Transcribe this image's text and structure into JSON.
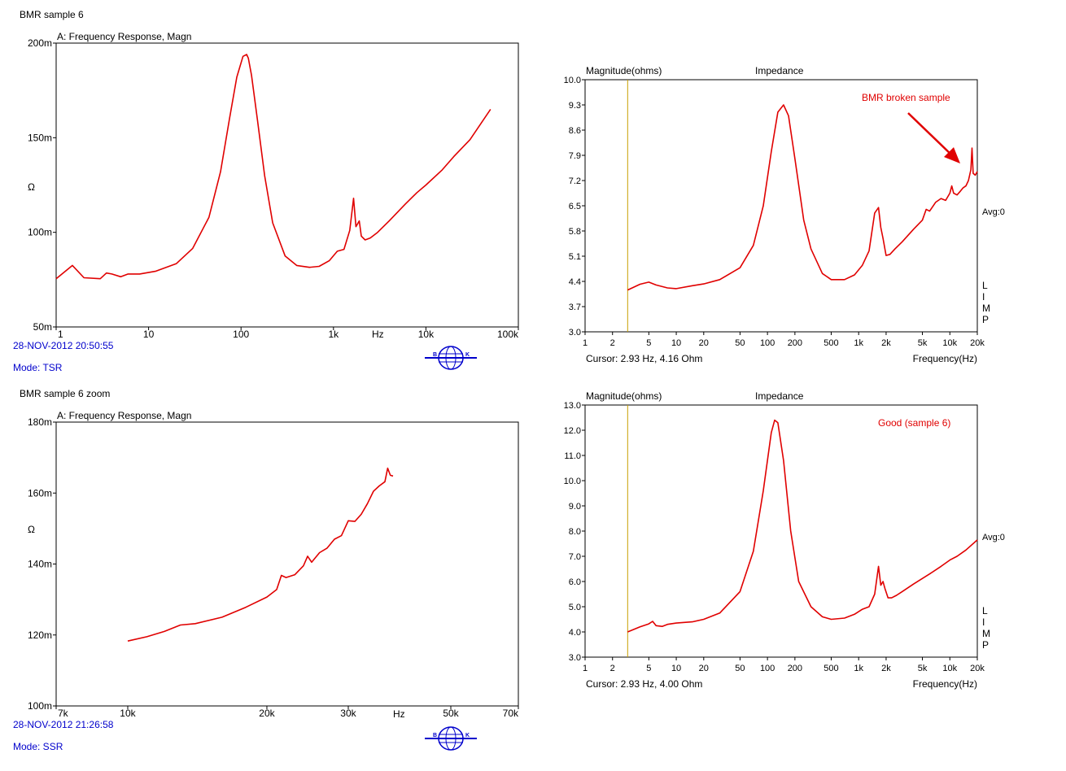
{
  "colors": {
    "trace": "#e00000",
    "blue_text": "#0000cc",
    "cursor_line": "#c8a000",
    "frame": "#000000",
    "annotation": "#e00000"
  },
  "icons": [
    "bk-logo-icon"
  ],
  "left_top": {
    "section_title": "BMR sample 6",
    "plot_title": "A: Frequency Response, Magn",
    "unit_label": "Ω",
    "hz_label": "Hz",
    "timestamp": "28-NOV-2012 20:50:55",
    "mode": "Mode: TSR"
  },
  "left_bottom": {
    "section_title": "BMR sample 6 zoom",
    "plot_title": "A: Frequency Response, Magn",
    "unit_label": "Ω",
    "hz_label": "Hz",
    "timestamp": "28-NOV-2012 21:26:58",
    "mode": "Mode: SSR"
  },
  "right_top": {
    "ylabel": "Magnitude(ohms)",
    "title": "Impedance",
    "annotation": "BMR broken sample",
    "avg": "Avg:0",
    "limp": [
      "L",
      "I",
      "M",
      "P"
    ],
    "cursor": "Cursor: 2.93 Hz, 4.16 Ohm",
    "xlabel": "Frequency(Hz)"
  },
  "right_bottom": {
    "ylabel": "Magnitude(ohms)",
    "title": "Impedance",
    "annotation": "Good (sample 6)",
    "avg": "Avg:0",
    "limp": [
      "L",
      "I",
      "M",
      "P"
    ],
    "cursor": "Cursor: 2.93 Hz, 4.00 Ohm",
    "xlabel": "Frequency(Hz)"
  },
  "chart_data": [
    {
      "type": "line",
      "xscale": "log",
      "xlim": [
        1,
        100000
      ],
      "ylim": [
        0.05,
        0.2
      ],
      "xticks": [
        1,
        10,
        100,
        1000,
        10000,
        100000
      ],
      "xtick_labels": [
        "1",
        "10",
        "100",
        "1k",
        "10k",
        "100k"
      ],
      "yticks": [
        0.05,
        0.1,
        0.15,
        0.2
      ],
      "ytick_labels": [
        "50m",
        "100m",
        "150m",
        "200m"
      ],
      "series": [
        {
          "x": [
            1,
            1.5,
            2,
            3,
            3.5,
            4,
            5,
            6,
            8,
            12,
            20,
            30,
            45,
            60,
            75,
            90,
            105,
            115,
            120,
            130,
            150,
            180,
            220,
            300,
            400,
            550,
            700,
            900,
            1100,
            1300,
            1500,
            1650,
            1750,
            1900,
            2000,
            2200,
            2500,
            3000,
            4000,
            6000,
            8000,
            10000,
            15000,
            20000,
            30000,
            40000,
            50000
          ],
          "y": [
            0.0755,
            0.0825,
            0.076,
            0.0755,
            0.0785,
            0.078,
            0.0765,
            0.078,
            0.078,
            0.0795,
            0.0835,
            0.0915,
            0.108,
            0.132,
            0.16,
            0.182,
            0.193,
            0.194,
            0.192,
            0.183,
            0.16,
            0.13,
            0.105,
            0.0875,
            0.0825,
            0.0815,
            0.082,
            0.085,
            0.09,
            0.091,
            0.101,
            0.118,
            0.103,
            0.106,
            0.098,
            0.096,
            0.097,
            0.1,
            0.106,
            0.115,
            0.121,
            0.125,
            0.133,
            0.14,
            0.149,
            0.158,
            0.165
          ]
        }
      ]
    },
    {
      "type": "line",
      "xscale": "log",
      "xlim": [
        7000,
        70000
      ],
      "ylim": [
        0.1,
        0.18
      ],
      "xticks": [
        7000,
        10000,
        20000,
        30000,
        50000,
        70000
      ],
      "xtick_labels": [
        "7k",
        "10k",
        "20k",
        "30k",
        "50k",
        "70k"
      ],
      "yticks": [
        0.1,
        0.12,
        0.14,
        0.16,
        0.18
      ],
      "ytick_labels": [
        "100m",
        "120m",
        "140m",
        "160m",
        "180m"
      ],
      "series": [
        {
          "x": [
            10000,
            11000,
            12000,
            13000,
            14000,
            16000,
            18000,
            20000,
            21000,
            21500,
            22000,
            23000,
            24000,
            24500,
            25000,
            26000,
            27000,
            28000,
            29000,
            30000,
            31000,
            32000,
            33000,
            34000,
            35000,
            36000,
            36500,
            37000,
            37500
          ],
          "y": [
            0.1183,
            0.1195,
            0.121,
            0.1228,
            0.1232,
            0.125,
            0.1278,
            0.1307,
            0.1328,
            0.1368,
            0.1362,
            0.137,
            0.1395,
            0.1422,
            0.1405,
            0.1432,
            0.1445,
            0.147,
            0.148,
            0.1522,
            0.152,
            0.154,
            0.157,
            0.1605,
            0.162,
            0.1632,
            0.167,
            0.165,
            0.1648
          ]
        }
      ]
    },
    {
      "type": "line",
      "title": "Impedance",
      "ylabel": "Magnitude(ohms)",
      "xlabel": "Frequency(Hz)",
      "xscale": "log",
      "xlim": [
        1,
        20000
      ],
      "ylim": [
        3.0,
        10.0
      ],
      "xticks": [
        1,
        2,
        5,
        10,
        20,
        50,
        100,
        200,
        500,
        1000,
        2000,
        5000,
        10000,
        20000
      ],
      "xtick_labels": [
        "1",
        "2",
        "5",
        "10",
        "20",
        "50",
        "100",
        "200",
        "500",
        "1k",
        "2k",
        "5k",
        "10k",
        "20k"
      ],
      "yticks": [
        3.0,
        3.7,
        4.4,
        5.1,
        5.8,
        6.5,
        7.2,
        7.9,
        8.6,
        9.3,
        10.0
      ],
      "ytick_labels": [
        "3.0",
        "3.7",
        "4.4",
        "5.1",
        "5.8",
        "6.5",
        "7.2",
        "7.9",
        "8.6",
        "9.3",
        "10.0"
      ],
      "cursor_x": 2.93,
      "series": [
        {
          "x": [
            2.93,
            4,
            5,
            6,
            8,
            10,
            15,
            20,
            30,
            50,
            70,
            90,
            110,
            130,
            150,
            170,
            200,
            250,
            300,
            400,
            500,
            700,
            900,
            1100,
            1300,
            1500,
            1650,
            1750,
            1850,
            2000,
            2200,
            2500,
            3000,
            4000,
            5000,
            5500,
            6000,
            7000,
            8000,
            9000,
            10000,
            10500,
            11000,
            12000,
            13000,
            14000,
            15000,
            16000,
            17000,
            17500,
            18000,
            19000,
            20000
          ],
          "y": [
            4.16,
            4.32,
            4.38,
            4.3,
            4.22,
            4.2,
            4.28,
            4.33,
            4.45,
            4.78,
            5.4,
            6.5,
            8.0,
            9.1,
            9.3,
            9.0,
            7.8,
            6.1,
            5.3,
            4.62,
            4.45,
            4.45,
            4.58,
            4.85,
            5.25,
            6.3,
            6.45,
            5.9,
            5.6,
            5.12,
            5.15,
            5.3,
            5.5,
            5.85,
            6.1,
            6.4,
            6.35,
            6.6,
            6.7,
            6.65,
            6.85,
            7.05,
            6.85,
            6.8,
            6.9,
            7.0,
            7.05,
            7.2,
            7.5,
            8.1,
            7.4,
            7.35,
            7.45
          ]
        }
      ]
    },
    {
      "type": "line",
      "title": "Impedance",
      "ylabel": "Magnitude(ohms)",
      "xlabel": "Frequency(Hz)",
      "xscale": "log",
      "xlim": [
        1,
        20000
      ],
      "ylim": [
        3.0,
        13.0
      ],
      "xticks": [
        1,
        2,
        5,
        10,
        20,
        50,
        100,
        200,
        500,
        1000,
        2000,
        5000,
        10000,
        20000
      ],
      "xtick_labels": [
        "1",
        "2",
        "5",
        "10",
        "20",
        "50",
        "100",
        "200",
        "500",
        "1k",
        "2k",
        "5k",
        "10k",
        "20k"
      ],
      "yticks": [
        3.0,
        4.0,
        5.0,
        6.0,
        7.0,
        8.0,
        9.0,
        10.0,
        11.0,
        12.0,
        13.0
      ],
      "ytick_labels": [
        "3.0",
        "4.0",
        "5.0",
        "6.0",
        "7.0",
        "8.0",
        "9.0",
        "10.0",
        "11.0",
        "12.0",
        "13.0"
      ],
      "cursor_x": 2.93,
      "series": [
        {
          "x": [
            2.93,
            4,
            5,
            5.5,
            6,
            7,
            8,
            10,
            15,
            20,
            30,
            50,
            70,
            90,
            110,
            120,
            130,
            150,
            180,
            220,
            300,
            400,
            500,
            700,
            900,
            1100,
            1300,
            1500,
            1650,
            1750,
            1850,
            1950,
            2100,
            2300,
            2600,
            3000,
            4000,
            6000,
            8000,
            10000,
            12000,
            15000,
            20000
          ],
          "y": [
            4.0,
            4.2,
            4.32,
            4.42,
            4.25,
            4.22,
            4.3,
            4.35,
            4.4,
            4.5,
            4.75,
            5.6,
            7.2,
            9.6,
            11.9,
            12.4,
            12.3,
            10.8,
            8.0,
            6.0,
            5.0,
            4.6,
            4.5,
            4.55,
            4.7,
            4.9,
            5.0,
            5.5,
            6.6,
            5.85,
            6.0,
            5.7,
            5.35,
            5.35,
            5.45,
            5.6,
            5.9,
            6.3,
            6.6,
            6.85,
            7.0,
            7.25,
            7.65
          ]
        }
      ]
    }
  ]
}
